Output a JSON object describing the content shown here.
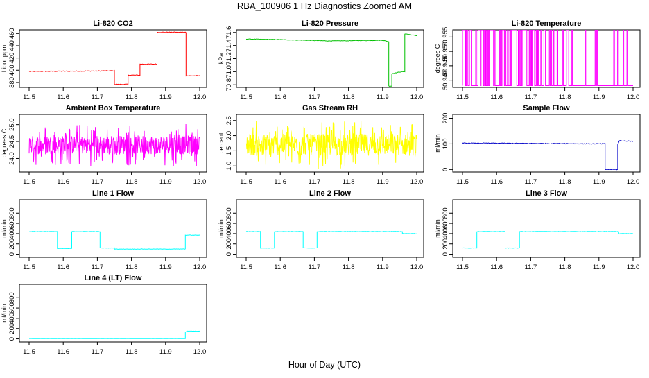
{
  "figure": {
    "title": "RBA_100906  1 Hz Diagnostics Zoomed AM",
    "xlabel": "Hour of Day (UTC)"
  },
  "chart_data": [
    {
      "type": "line",
      "title": "Li-820 CO2",
      "ylabel": "Licor ppm",
      "color": "#ff0000",
      "xlim": [
        11.5,
        12.0
      ],
      "ylim": [
        372,
        466
      ],
      "xticks": [
        "11.5",
        "11.6",
        "11.7",
        "11.8",
        "11.9",
        "12.0"
      ],
      "yticks": [
        380,
        400,
        420,
        440,
        460
      ],
      "style": "steps",
      "noise": 0.6,
      "x": [
        11.5,
        11.75,
        11.75,
        11.79,
        11.79,
        11.825,
        11.825,
        11.875,
        11.875,
        11.96,
        11.96,
        12.0
      ],
      "y": [
        398,
        399,
        377,
        377,
        392,
        392,
        410,
        410,
        462,
        462,
        391,
        391
      ]
    },
    {
      "type": "line",
      "title": "Li-820 Pressure",
      "ylabel": "kPa",
      "color": "#00c000",
      "xlim": [
        11.5,
        12.0
      ],
      "ylim": [
        70.76,
        71.64
      ],
      "xticks": [
        "11.5",
        "11.6",
        "11.7",
        "11.8",
        "11.9",
        "12.0"
      ],
      "yticks": [
        "70.8",
        "71.0",
        "71.2",
        "71.4",
        "71.6"
      ],
      "style": "steps",
      "noise": 0.004,
      "x": [
        11.5,
        11.6,
        11.75,
        11.9,
        11.918,
        11.918,
        11.927,
        11.927,
        11.955,
        11.965,
        11.965,
        12.0
      ],
      "y": [
        71.5,
        71.49,
        71.47,
        71.48,
        71.46,
        70.78,
        70.78,
        70.97,
        71.0,
        71.0,
        71.58,
        71.55
      ]
    },
    {
      "type": "line",
      "title": "Li-820 Temperature",
      "ylabel": "degrees C",
      "color": "#ff00ff",
      "xlim": [
        11.5,
        12.0
      ],
      "ylim": [
        50.9375,
        50.9575
      ],
      "xticks": [
        "11.5",
        "11.6",
        "11.7",
        "11.8",
        "11.9",
        "12.0"
      ],
      "yticks": [
        "50.940",
        "50.945",
        "50.950",
        "50.955"
      ],
      "style": "binary",
      "low": 50.9381,
      "high": 50.9575,
      "x": [
        11.5,
        12.0
      ],
      "y": [
        50.9381,
        50.9381
      ]
    },
    {
      "type": "line",
      "title": "Ambient Box Temperature",
      "ylabel": "degrees C",
      "color": "#ff00ff",
      "xlim": [
        11.5,
        12.0
      ],
      "ylim": [
        23.6,
        25.3
      ],
      "xticks": [
        "11.5",
        "11.6",
        "11.7",
        "11.8",
        "11.9",
        "12.0"
      ],
      "yticks": [
        "24.0",
        "24.5",
        "25.0"
      ],
      "style": "noisy",
      "mean": 24.4,
      "amplitude": 0.62,
      "x": [
        11.5,
        12.0
      ],
      "y": [
        24.4,
        24.4
      ]
    },
    {
      "type": "line",
      "title": "Gas Stream RH",
      "ylabel": "percent",
      "color": "#ffff00",
      "xlim": [
        11.5,
        12.0
      ],
      "ylim": [
        0.8,
        2.7
      ],
      "xticks": [
        "11.5",
        "11.6",
        "11.7",
        "11.8",
        "11.9",
        "12.0"
      ],
      "yticks": [
        "1.0",
        "1.5",
        "2.0",
        "2.5"
      ],
      "style": "noisy",
      "mean": 1.7,
      "amplitude": 0.8,
      "x": [
        11.5,
        12.0
      ],
      "y": [
        1.7,
        1.7
      ]
    },
    {
      "type": "line",
      "title": "Sample Flow",
      "ylabel": "ml/min",
      "color": "#0000c8",
      "xlim": [
        11.5,
        12.0
      ],
      "ylim": [
        -10,
        215
      ],
      "xticks": [
        "11.5",
        "11.6",
        "11.7",
        "11.8",
        "11.9",
        "12.0"
      ],
      "yticks": [
        0,
        100,
        200
      ],
      "style": "steps",
      "noise": 1.5,
      "x": [
        11.5,
        11.8,
        11.91,
        11.918,
        11.918,
        11.955,
        11.955,
        11.96,
        12.0
      ],
      "y": [
        103,
        101,
        100,
        100,
        0,
        0,
        98,
        112,
        110
      ]
    },
    {
      "type": "line",
      "title": "Line 1 Flow",
      "ylabel": "ml/min",
      "color": "#00ffff",
      "xlim": [
        11.5,
        12.0
      ],
      "ylim": [
        -60,
        1060
      ],
      "xticks": [
        "11.5",
        "11.6",
        "11.7",
        "11.8",
        "11.9",
        "12.0"
      ],
      "yticks": [
        0,
        200,
        400,
        600,
        800
      ],
      "style": "steps",
      "noise": 4,
      "x": [
        11.5,
        11.583,
        11.583,
        11.625,
        11.625,
        11.708,
        11.708,
        11.75,
        11.75,
        11.958,
        11.958,
        12.0
      ],
      "y": [
        440,
        440,
        110,
        110,
        440,
        440,
        120,
        120,
        100,
        100,
        370,
        370
      ]
    },
    {
      "type": "line",
      "title": "Line 2 Flow",
      "ylabel": "ml/min",
      "color": "#00ffff",
      "xlim": [
        11.5,
        12.0
      ],
      "ylim": [
        -60,
        1060
      ],
      "xticks": [
        "11.5",
        "11.6",
        "11.7",
        "11.8",
        "11.9",
        "12.0"
      ],
      "yticks": [
        0,
        200,
        400,
        600,
        800
      ],
      "style": "steps",
      "noise": 4,
      "x": [
        11.5,
        11.542,
        11.542,
        11.583,
        11.583,
        11.667,
        11.667,
        11.708,
        11.708,
        11.958,
        11.958,
        12.0
      ],
      "y": [
        440,
        440,
        120,
        120,
        440,
        440,
        120,
        120,
        440,
        440,
        400,
        400
      ]
    },
    {
      "type": "line",
      "title": "Line 3 Flow",
      "ylabel": "ml/min",
      "color": "#00ffff",
      "xlim": [
        11.5,
        12.0
      ],
      "ylim": [
        -60,
        1060
      ],
      "xticks": [
        "11.5",
        "11.6",
        "11.7",
        "11.8",
        "11.9",
        "12.0"
      ],
      "yticks": [
        0,
        200,
        400,
        600,
        800
      ],
      "style": "steps",
      "noise": 4,
      "x": [
        11.5,
        11.542,
        11.542,
        11.625,
        11.625,
        11.667,
        11.667,
        11.958,
        11.958,
        12.0
      ],
      "y": [
        120,
        120,
        440,
        440,
        120,
        120,
        440,
        440,
        400,
        400
      ]
    },
    {
      "type": "line",
      "title": "Line 4 (LT) Flow",
      "ylabel": "ml/min",
      "color": "#00ffff",
      "xlim": [
        11.5,
        12.0
      ],
      "ylim": [
        -60,
        1060
      ],
      "xticks": [
        "11.5",
        "11.6",
        "11.7",
        "11.8",
        "11.9",
        "12.0"
      ],
      "yticks": [
        0,
        200,
        400,
        600,
        800
      ],
      "style": "steps",
      "noise": 2,
      "x": [
        11.5,
        11.958,
        11.958,
        11.963,
        12.0
      ],
      "y": [
        5,
        5,
        130,
        150,
        150
      ]
    }
  ]
}
